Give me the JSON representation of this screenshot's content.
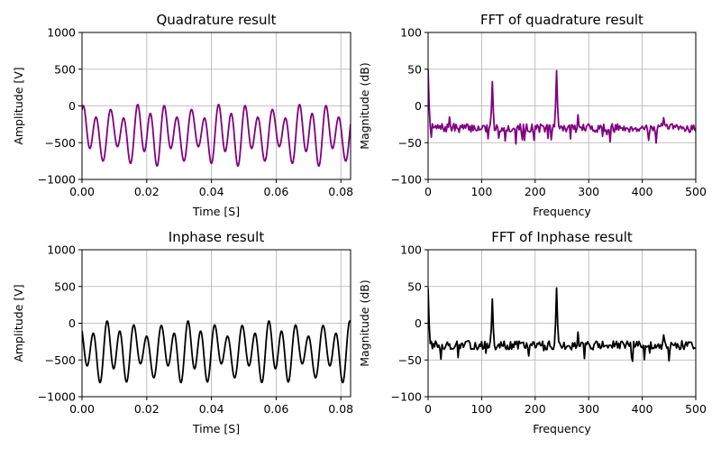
{
  "chart_data": [
    {
      "type": "line",
      "title": "Quadrature result",
      "xlabel": "Time [S]",
      "ylabel": "Amplitude [V]",
      "xlim": [
        0,
        0.083
      ],
      "ylim": [
        -1000,
        1000
      ],
      "xticks": [
        "0.00",
        "0.02",
        "0.04",
        "0.06",
        "0.08"
      ],
      "yticks": [
        "1000",
        "500",
        "0",
        "−500",
        "−1000"
      ],
      "grid": true,
      "color": "#800080",
      "series": [
        {
          "signal": {
            "offset": -380,
            "components": [
              {
                "amp": 300,
                "freq": 240,
                "phase": 1.0
              },
              {
                "amp": 120,
                "freq": 120,
                "phase": 0.3
              },
              {
                "amp": 40,
                "freq": 280,
                "phase": 2.0
              }
            ],
            "x_start": 0,
            "x_end": 0.083,
            "samples": 1000
          }
        }
      ]
    },
    {
      "type": "line",
      "title": "FFT of quadrature result",
      "xlabel": "Frequency",
      "ylabel": "Magnitude (dB)",
      "xlim": [
        0,
        500
      ],
      "ylim": [
        -100,
        100
      ],
      "xticks": [
        "0",
        "100",
        "200",
        "300",
        "400",
        "500"
      ],
      "yticks": [
        "100",
        "50",
        "0",
        "−50",
        "−100"
      ],
      "grid": true,
      "color": "#800080",
      "series": [
        {
          "spectrum": {
            "baseline_db": -30,
            "noise_db": 6,
            "step": 2,
            "seed": 7,
            "peaks": [
              {
                "f": 0,
                "db": 50
              },
              {
                "f": 2,
                "db": -5
              },
              {
                "f": 40,
                "db": -15
              },
              {
                "f": 120,
                "db": 33
              },
              {
                "f": 240,
                "db": 48
              },
              {
                "f": 280,
                "db": -12
              },
              {
                "f": 440,
                "db": -16
              }
            ]
          }
        }
      ]
    },
    {
      "type": "line",
      "title": "Inphase result",
      "xlabel": "Time [S]",
      "ylabel": "Amplitude [V]",
      "xlim": [
        0,
        0.083
      ],
      "ylim": [
        -1000,
        1000
      ],
      "xticks": [
        "0.00",
        "0.02",
        "0.04",
        "0.06",
        "0.08"
      ],
      "yticks": [
        "1000",
        "500",
        "0",
        "−500",
        "−1000"
      ],
      "grid": true,
      "color": "#000000",
      "series": [
        {
          "signal": {
            "offset": -380,
            "components": [
              {
                "amp": 300,
                "freq": 240,
                "phase": 2.6
              },
              {
                "amp": 120,
                "freq": 120,
                "phase": 1.1
              },
              {
                "amp": 40,
                "freq": 280,
                "phase": 0.4
              }
            ],
            "x_start": 0,
            "x_end": 0.083,
            "samples": 1000
          }
        }
      ]
    },
    {
      "type": "line",
      "title": "FFT of Inphase result",
      "xlabel": "Frequency",
      "ylabel": "Magnitude (dB)",
      "xlim": [
        0,
        500
      ],
      "ylim": [
        -100,
        100
      ],
      "xticks": [
        "0",
        "100",
        "200",
        "300",
        "400",
        "500"
      ],
      "yticks": [
        "100",
        "50",
        "0",
        "−50",
        "−100"
      ],
      "grid": true,
      "color": "#000000",
      "series": [
        {
          "spectrum": {
            "baseline_db": -30,
            "noise_db": 6,
            "step": 2,
            "seed": 13,
            "peaks": [
              {
                "f": 0,
                "db": 48
              },
              {
                "f": 2,
                "db": -5
              },
              {
                "f": 120,
                "db": 33
              },
              {
                "f": 240,
                "db": 48
              },
              {
                "f": 280,
                "db": -12
              },
              {
                "f": 440,
                "db": -16
              }
            ]
          }
        }
      ]
    }
  ]
}
